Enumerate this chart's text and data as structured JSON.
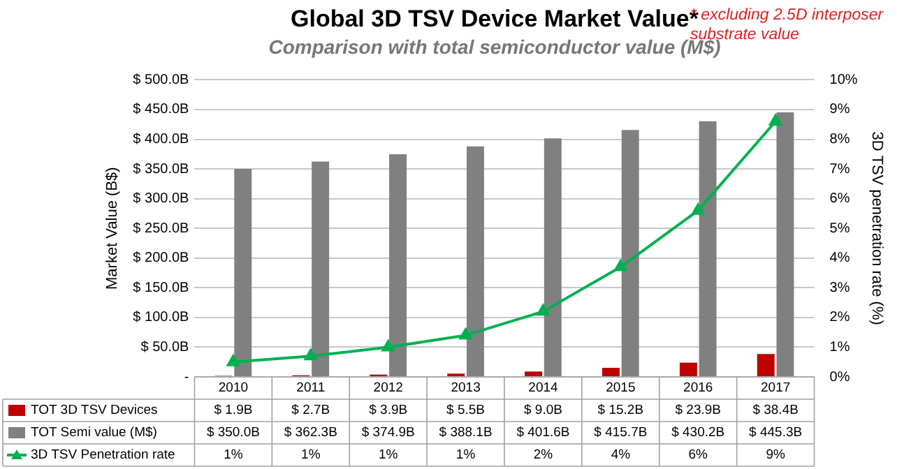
{
  "chart_data": {
    "type": "bar",
    "title": "Global 3D TSV Device Market Value*",
    "subtitle": "Comparison with total semiconductor value (M$)",
    "ylabel": "Market Value (B$)",
    "y2label": "3D TSV penetration rate (%)",
    "annotations": [
      "* excluding 2.5D interposer substrate value"
    ],
    "categories": [
      "2010",
      "2011",
      "2012",
      "2013",
      "2014",
      "2015",
      "2016",
      "2017"
    ],
    "series": [
      {
        "name": "TOT 3D TSV Devices",
        "color": "#c00000",
        "values": [
          1.9,
          2.7,
          3.9,
          5.5,
          9.0,
          15.2,
          23.9,
          38.4
        ],
        "value_labels": [
          "$ 1.9B",
          "$ 2.7B",
          "$ 3.9B",
          "$ 5.5B",
          "$ 9.0B",
          "$ 15.2B",
          "$ 23.9B",
          "$ 38.4B"
        ]
      },
      {
        "name": "TOT Semi value (M$)",
        "color": "#808080",
        "values": [
          350.0,
          362.3,
          374.9,
          388.1,
          401.6,
          415.7,
          430.2,
          445.3
        ],
        "value_labels": [
          "$ 350.0B",
          "$ 362.3B",
          "$ 374.9B",
          "$ 388.1B",
          "$ 401.6B",
          "$ 415.7B",
          "$ 430.2B",
          "$ 445.3B"
        ]
      },
      {
        "name": "3D TSV Penetration rate",
        "type": "line",
        "axis": "y2",
        "color": "#00b050",
        "marker": "triangle",
        "values": [
          0.5,
          0.7,
          1.0,
          1.4,
          2.2,
          3.7,
          5.6,
          8.6
        ],
        "value_labels": [
          "1%",
          "1%",
          "1%",
          "1%",
          "2%",
          "4%",
          "6%",
          "9%"
        ]
      }
    ],
    "ylim": [
      0,
      500
    ],
    "yticks": [
      {
        "value": 0,
        "label": "-"
      },
      {
        "value": 50,
        "label": "$ 50.0B"
      },
      {
        "value": 100,
        "label": "$ 100.0B"
      },
      {
        "value": 150,
        "label": "$ 150.0B"
      },
      {
        "value": 200,
        "label": "$ 200.0B"
      },
      {
        "value": 250,
        "label": "$ 250.0B"
      },
      {
        "value": 300,
        "label": "$ 300.0B"
      },
      {
        "value": 350,
        "label": "$ 350.0B"
      },
      {
        "value": 400,
        "label": "$ 400.0B"
      },
      {
        "value": 450,
        "label": "$ 450.0B"
      },
      {
        "value": 500,
        "label": "$ 500.0B"
      }
    ],
    "y2lim": [
      0,
      10
    ],
    "y2ticks": [
      {
        "value": 0,
        "label": "0%"
      },
      {
        "value": 1,
        "label": "1%"
      },
      {
        "value": 2,
        "label": "2%"
      },
      {
        "value": 3,
        "label": "3%"
      },
      {
        "value": 4,
        "label": "4%"
      },
      {
        "value": 5,
        "label": "5%"
      },
      {
        "value": 6,
        "label": "6%"
      },
      {
        "value": 7,
        "label": "7%"
      },
      {
        "value": 8,
        "label": "8%"
      },
      {
        "value": 9,
        "label": "9%"
      },
      {
        "value": 10,
        "label": "10%"
      }
    ],
    "grid": "y",
    "legend": "bottom"
  }
}
